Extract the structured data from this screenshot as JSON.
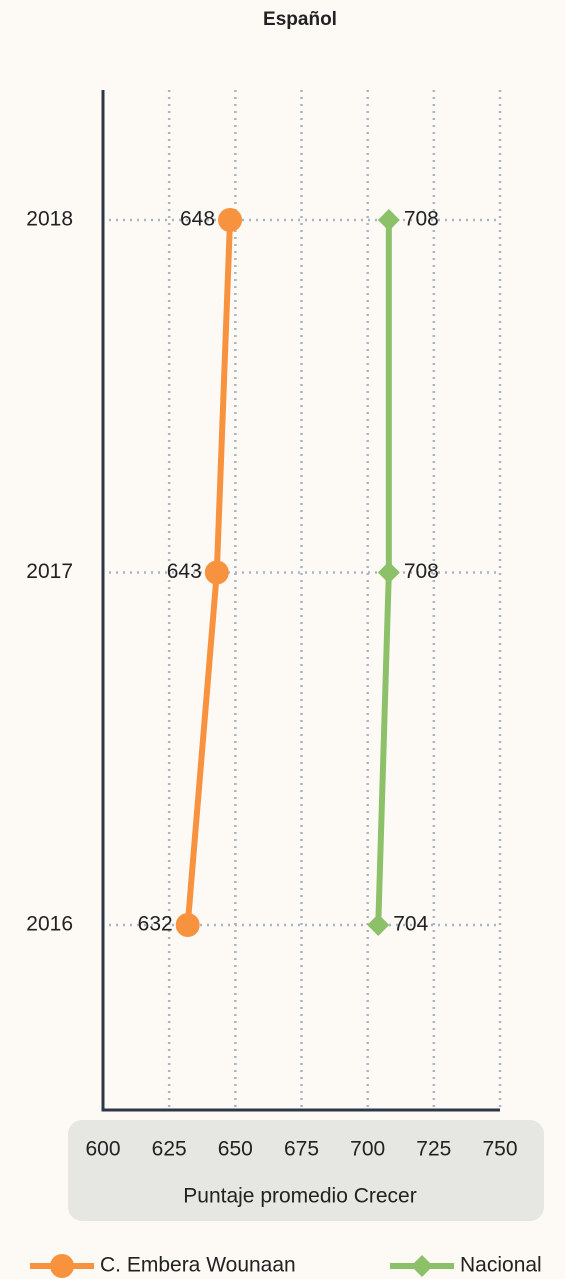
{
  "chart_data": {
    "type": "line",
    "title": "Español",
    "categories": [
      "2016",
      "2017",
      "2018"
    ],
    "series": [
      {
        "name": "C. Embera Wounaan",
        "color": "#f7923f",
        "marker": "circle",
        "values": [
          632,
          643,
          648
        ]
      },
      {
        "name": "Nacional",
        "color": "#8cc16a",
        "marker": "diamond",
        "values": [
          704,
          708,
          708
        ]
      }
    ],
    "xlim": [
      600,
      750
    ],
    "xticks": [
      600,
      625,
      650,
      675,
      700,
      725,
      750
    ],
    "xlabel": "Puntaje promedio Crecer",
    "grid": true,
    "legend": "bottom"
  }
}
